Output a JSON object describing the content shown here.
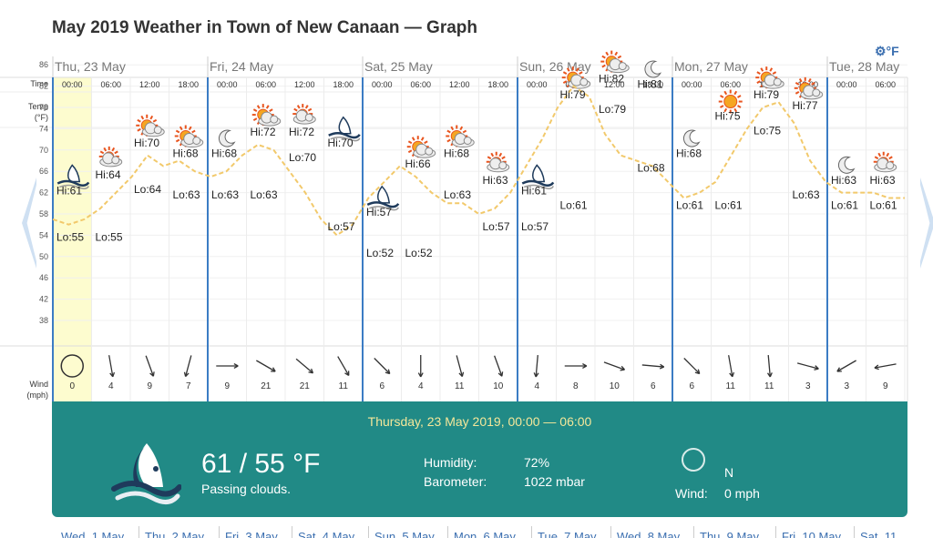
{
  "page": {
    "title": "May 2019 Weather in Town of New Canaan — Graph",
    "unit_toggle": "⚙°F"
  },
  "row_labels": {
    "time": "Time",
    "temp_line1": "Temp",
    "temp_line2": "(°F)",
    "wind_line1": "Wind",
    "wind_line2": "(mph)"
  },
  "temp_axis_ticks": [
    86,
    82,
    78,
    74,
    70,
    66,
    62,
    58,
    54,
    50,
    46,
    42,
    38
  ],
  "days": [
    {
      "label": "Thu, 23 May"
    },
    {
      "label": "Fri, 24 May"
    },
    {
      "label": "Sat, 25 May"
    },
    {
      "label": "Sun, 26 May"
    },
    {
      "label": "Mon, 27 May"
    },
    {
      "label": "Tue, 28 May"
    }
  ],
  "slots": [
    {
      "time": "00:00",
      "icon": "cloudy-night-icon",
      "wind": 0,
      "wind_dir": "calm-icon"
    },
    {
      "time": "06:00",
      "icon": "partly-cloudy-icon",
      "wind": 4,
      "wind_dir": "wind-arrow-icon"
    },
    {
      "time": "12:00",
      "icon": "sun-cloud-icon",
      "wind": 9,
      "wind_dir": "wind-arrow-icon"
    },
    {
      "time": "18:00",
      "icon": "sun-cloud-icon",
      "wind": 7,
      "wind_dir": "wind-arrow-icon"
    },
    {
      "time": "00:00",
      "icon": "clear-night-icon",
      "wind": 9,
      "wind_dir": "wind-arrow-icon"
    },
    {
      "time": "06:00",
      "icon": "sun-cloud-icon",
      "wind": 21,
      "wind_dir": "wind-arrow-icon"
    },
    {
      "time": "12:00",
      "icon": "partly-cloudy-icon",
      "wind": 21,
      "wind_dir": "wind-arrow-icon"
    },
    {
      "time": "18:00",
      "icon": "cloudy-night-icon",
      "wind": 11,
      "wind_dir": "wind-arrow-icon"
    },
    {
      "time": "00:00",
      "icon": "cloudy-night-icon",
      "wind": 6,
      "wind_dir": "wind-arrow-icon"
    },
    {
      "time": "06:00",
      "icon": "sun-cloud-icon",
      "wind": 4,
      "wind_dir": "wind-arrow-icon"
    },
    {
      "time": "12:00",
      "icon": "sun-cloud-icon",
      "wind": 11,
      "wind_dir": "wind-arrow-icon"
    },
    {
      "time": "18:00",
      "icon": "partly-cloudy-icon",
      "wind": 10,
      "wind_dir": "wind-arrow-icon"
    },
    {
      "time": "00:00",
      "icon": "cloudy-night-icon",
      "wind": 4,
      "wind_dir": "wind-arrow-icon"
    },
    {
      "time": "06:00",
      "icon": "sun-cloud-icon",
      "wind": 8,
      "wind_dir": "wind-arrow-icon"
    },
    {
      "time": "12:00",
      "icon": "sun-cloud-icon",
      "wind": 10,
      "wind_dir": "wind-arrow-icon"
    },
    {
      "time": "18:00",
      "icon": "clear-night-icon",
      "wind": 6,
      "wind_dir": "wind-arrow-icon"
    },
    {
      "time": "00:00",
      "icon": "clear-night-icon",
      "wind": 6,
      "wind_dir": "wind-arrow-icon"
    },
    {
      "time": "06:00",
      "icon": "sun-icon",
      "wind": 11,
      "wind_dir": "wind-arrow-icon"
    },
    {
      "time": "12:00",
      "icon": "sun-cloud-icon",
      "wind": 11,
      "wind_dir": "wind-arrow-icon"
    },
    {
      "time": "18:00",
      "icon": "sun-cloud-icon",
      "wind": 3,
      "wind_dir": "wind-arrow-icon"
    },
    {
      "time": "00:00",
      "icon": "clear-night-icon",
      "wind": 3,
      "wind_dir": "wind-arrow-icon"
    },
    {
      "time": "06:00",
      "icon": "partly-cloudy-icon",
      "wind": 9,
      "wind_dir": "wind-arrow-icon"
    }
  ],
  "chart_data": {
    "type": "line",
    "ylim": [
      36,
      90
    ],
    "yticks": [
      86,
      82,
      78,
      74,
      70,
      66,
      62,
      58,
      54,
      50,
      46,
      42,
      38
    ],
    "series": [
      {
        "values": [
          57,
          56,
          57,
          59,
          62,
          65,
          69,
          67,
          68,
          66,
          65,
          66,
          69,
          71,
          70,
          66,
          62,
          57,
          54,
          56,
          61,
          64,
          67,
          65,
          62,
          60,
          60,
          58,
          59,
          62,
          67,
          72,
          78,
          82,
          80,
          73,
          69,
          68,
          67,
          64,
          61,
          62,
          64,
          69,
          74,
          78,
          79,
          75,
          68,
          64,
          62,
          62,
          62,
          61,
          61
        ]
      }
    ],
    "hi_labels": [
      {
        "text": "Hi:61",
        "value": 61,
        "slot": 0
      },
      {
        "text": "Hi:64",
        "value": 64,
        "slot": 1
      },
      {
        "text": "Hi:70",
        "value": 70,
        "slot": 2
      },
      {
        "text": "Hi:68",
        "value": 68,
        "slot": 3
      },
      {
        "text": "Hi:68",
        "value": 68,
        "slot": 4
      },
      {
        "text": "Hi:72",
        "value": 72,
        "slot": 5
      },
      {
        "text": "Hi:72",
        "value": 72,
        "slot": 6
      },
      {
        "text": "Hi:70",
        "value": 70,
        "slot": 7
      },
      {
        "text": "Hi:57",
        "value": 57,
        "slot": 8
      },
      {
        "text": "Hi:66",
        "value": 66,
        "slot": 9
      },
      {
        "text": "Hi:68",
        "value": 68,
        "slot": 10
      },
      {
        "text": "Hi:63",
        "value": 63,
        "slot": 11
      },
      {
        "text": "Hi:61",
        "value": 61,
        "slot": 12
      },
      {
        "text": "Hi:79",
        "value": 79,
        "slot": 13
      },
      {
        "text": "Hi:82",
        "value": 82,
        "slot": 14
      },
      {
        "text": "Hi:81",
        "value": 81,
        "slot": 15
      },
      {
        "text": "Hi:68",
        "value": 68,
        "slot": 16
      },
      {
        "text": "Hi:75",
        "value": 75,
        "slot": 17
      },
      {
        "text": "Hi:79",
        "value": 79,
        "slot": 18
      },
      {
        "text": "Hi:77",
        "value": 77,
        "slot": 19
      },
      {
        "text": "Hi:63",
        "value": 63,
        "slot": 20
      },
      {
        "text": "Hi:63",
        "value": 63,
        "slot": 21
      }
    ],
    "lo_labels": [
      {
        "text": "Lo:55",
        "value": 55,
        "slot": 0
      },
      {
        "text": "Lo:55",
        "value": 55,
        "slot": 1
      },
      {
        "text": "Lo:64",
        "value": 64,
        "slot": 2
      },
      {
        "text": "Lo:63",
        "value": 63,
        "slot": 3
      },
      {
        "text": "Lo:63",
        "value": 63,
        "slot": 4
      },
      {
        "text": "Lo:63",
        "value": 63,
        "slot": 5
      },
      {
        "text": "Lo:70",
        "value": 70,
        "slot": 6
      },
      {
        "text": "Lo:57",
        "value": 57,
        "slot": 7
      },
      {
        "text": "Lo:52",
        "value": 52,
        "slot": 8
      },
      {
        "text": "Lo:52",
        "value": 52,
        "slot": 9
      },
      {
        "text": "Lo:63",
        "value": 63,
        "slot": 10
      },
      {
        "text": "Lo:57",
        "value": 57,
        "slot": 11
      },
      {
        "text": "Lo:57",
        "value": 57,
        "slot": 12
      },
      {
        "text": "Lo:61",
        "value": 61,
        "slot": 13
      },
      {
        "text": "Lo:79",
        "value": 79,
        "slot": 14
      },
      {
        "text": "Lo:68",
        "value": 68,
        "slot": 15
      },
      {
        "text": "Lo:61",
        "value": 61,
        "slot": 16
      },
      {
        "text": "Lo:61",
        "value": 61,
        "slot": 17
      },
      {
        "text": "Lo:75",
        "value": 75,
        "slot": 18
      },
      {
        "text": "Lo:63",
        "value": 63,
        "slot": 19
      },
      {
        "text": "Lo:61",
        "value": 61,
        "slot": 20
      },
      {
        "text": "Lo:61",
        "value": 61,
        "slot": 21
      }
    ]
  },
  "detail": {
    "header": "Thursday, 23 May 2019, 00:00 — 06:00",
    "icon": "cloudy-night-icon",
    "temp": "61 / 55 °F",
    "description": "Passing clouds.",
    "humidity_label": "Humidity:",
    "humidity_value": "72%",
    "barometer_label": "Barometer:",
    "barometer_value": "1022 mbar",
    "wind_direction": "N",
    "wind_label": "Wind:",
    "wind_value": "0 mph"
  },
  "month_tabs": [
    "Wed, 1 May",
    "Thu, 2 May",
    "Fri, 3 May",
    "Sat, 4 May",
    "Sun, 5 May",
    "Mon, 6 May",
    "Tue, 7 May",
    "Wed, 8 May",
    "Thu, 9 May",
    "Fri, 10 May",
    "Sat, 11"
  ],
  "colors": {
    "teal": "#218a86",
    "highlight": "#fdfccf",
    "day_divider": "#3b7cc4",
    "temp_line": "#f2c96b"
  }
}
